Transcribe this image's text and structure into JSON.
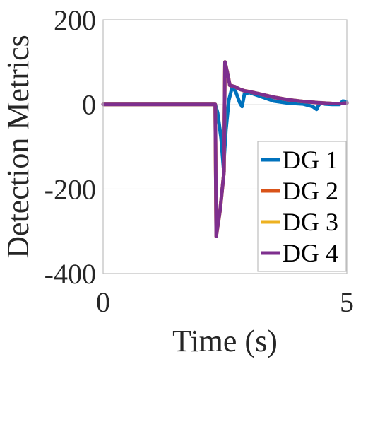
{
  "chart_data": {
    "type": "line",
    "xlabel": "Time (s)",
    "ylabel": "Detection Metrics",
    "xlim": [
      0,
      5
    ],
    "ylim": [
      -400,
      200
    ],
    "xticks": [
      "0",
      "5"
    ],
    "yticks": [
      "200",
      "0",
      "-200",
      "-400"
    ],
    "xtick_values": [
      0,
      5
    ],
    "ytick_values": [
      200,
      0,
      -200,
      -400
    ],
    "grid": true,
    "legend_position": "bottom-right",
    "series": [
      {
        "name": "DG 1",
        "color": "#0072BD",
        "x": [
          0,
          1,
          2,
          2.3,
          2.35,
          2.42,
          2.47,
          2.52,
          2.58,
          2.65,
          2.72,
          2.8,
          2.85,
          2.9,
          3.0,
          3.2,
          3.5,
          3.8,
          4.1,
          4.3,
          4.38,
          4.42,
          4.47,
          4.55,
          4.7,
          4.85,
          4.92,
          4.97,
          5.0
        ],
        "y": [
          0,
          0,
          0,
          0,
          -20,
          -80,
          -150,
          -60,
          10,
          42,
          30,
          5,
          -5,
          25,
          28,
          20,
          8,
          3,
          1,
          -5,
          -12,
          -2,
          4,
          1,
          0,
          0,
          8,
          7,
          5
        ]
      },
      {
        "name": "DG 2",
        "color": "#D95319",
        "x": [
          0,
          1,
          2,
          2.3,
          2.32,
          2.4,
          2.48,
          2.5,
          2.52,
          2.56,
          2.6,
          2.7,
          2.8,
          2.9,
          3.0,
          3.2,
          3.5,
          3.8,
          4.1,
          4.4,
          4.7,
          4.9,
          5.0
        ],
        "y": [
          0,
          0,
          0,
          0,
          -312,
          -250,
          -160,
          100,
          90,
          70,
          45,
          42,
          36,
          32,
          30,
          25,
          17,
          11,
          7,
          4,
          2,
          2,
          3
        ]
      },
      {
        "name": "DG 3",
        "color": "#EDB120",
        "x": [
          0,
          1,
          2,
          2.3,
          2.32,
          2.4,
          2.48,
          2.5,
          2.52,
          2.56,
          2.6,
          2.7,
          2.8,
          2.9,
          3.0,
          3.2,
          3.5,
          3.8,
          4.1,
          4.4,
          4.7,
          4.9,
          5.0
        ],
        "y": [
          0,
          0,
          0,
          0,
          -312,
          -250,
          -160,
          100,
          90,
          70,
          45,
          42,
          36,
          32,
          30,
          25,
          17,
          11,
          7,
          4,
          2,
          2,
          3
        ]
      },
      {
        "name": "DG 4",
        "color": "#7E2F8E",
        "x": [
          0,
          1,
          2,
          2.3,
          2.32,
          2.4,
          2.48,
          2.5,
          2.52,
          2.56,
          2.6,
          2.7,
          2.8,
          2.9,
          3.0,
          3.2,
          3.5,
          3.8,
          4.1,
          4.4,
          4.7,
          4.9,
          5.0
        ],
        "y": [
          0,
          0,
          0,
          0,
          -312,
          -250,
          -160,
          100,
          90,
          70,
          45,
          42,
          36,
          32,
          30,
          25,
          17,
          11,
          7,
          4,
          2,
          2,
          3
        ]
      }
    ]
  }
}
